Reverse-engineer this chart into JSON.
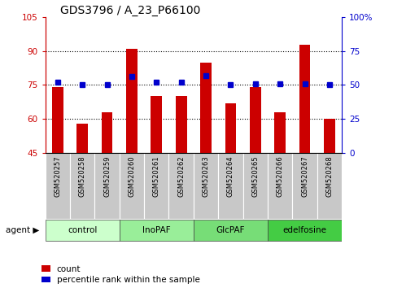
{
  "title": "GDS3796 / A_23_P66100",
  "samples": [
    "GSM520257",
    "GSM520258",
    "GSM520259",
    "GSM520260",
    "GSM520261",
    "GSM520262",
    "GSM520263",
    "GSM520264",
    "GSM520265",
    "GSM520266",
    "GSM520267",
    "GSM520268"
  ],
  "count_values": [
    74,
    58,
    63,
    91,
    70,
    70,
    85,
    67,
    74,
    63,
    93,
    60
  ],
  "percentile_values": [
    52,
    50,
    50,
    56,
    52,
    52,
    57,
    50,
    51,
    51,
    51,
    50
  ],
  "groups": [
    {
      "label": "control",
      "start": 0,
      "end": 3,
      "color": "#ccffcc"
    },
    {
      "label": "InoPAF",
      "start": 3,
      "end": 6,
      "color": "#99ee99"
    },
    {
      "label": "GlcPAF",
      "start": 6,
      "end": 9,
      "color": "#77dd77"
    },
    {
      "label": "edelfosine",
      "start": 9,
      "end": 12,
      "color": "#44cc44"
    }
  ],
  "ylim_left": [
    45,
    105
  ],
  "ylim_right": [
    0,
    100
  ],
  "bar_color": "#cc0000",
  "dot_color": "#0000cc",
  "bg_color": "#ffffff",
  "tick_color_left": "#cc0000",
  "tick_color_right": "#0000cc",
  "left_yticks": [
    45,
    60,
    75,
    90,
    105
  ],
  "right_yticks": [
    0,
    25,
    50,
    75,
    100
  ],
  "grid_yticks": [
    60,
    75,
    90
  ],
  "legend_items": [
    "count",
    "percentile rank within the sample"
  ]
}
